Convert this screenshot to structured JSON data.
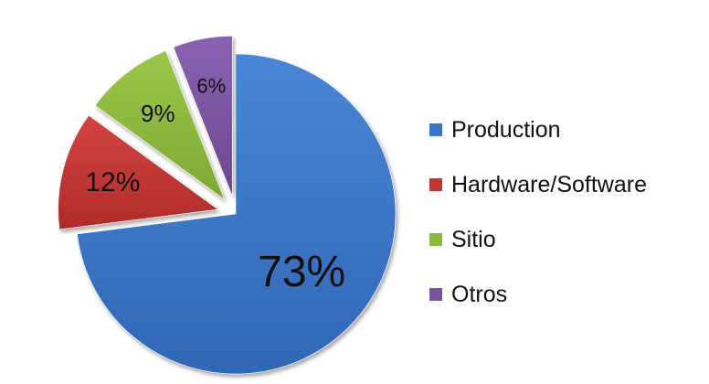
{
  "chart_data": {
    "type": "pie",
    "title": "",
    "slices": [
      {
        "label": "Production",
        "value": 73,
        "display": "73%",
        "color": "#3B77C9",
        "exploded": false
      },
      {
        "label": "Hardware/Software",
        "value": 12,
        "display": "12%",
        "color": "#C23634",
        "exploded": true
      },
      {
        "label": "Sitio",
        "value": 9,
        "display": "9%",
        "color": "#8DB83E",
        "exploded": true
      },
      {
        "label": "Otros",
        "value": 6,
        "display": "6%",
        "color": "#7A53A0",
        "exploded": true
      }
    ],
    "legend": {
      "position": "right"
    },
    "data_labels": "inside"
  }
}
